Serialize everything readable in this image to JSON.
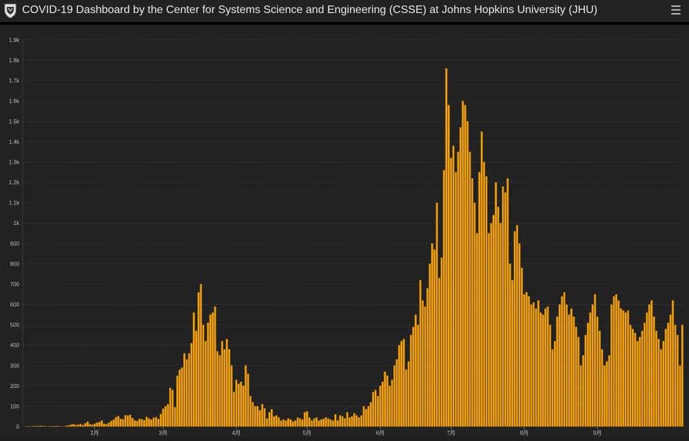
{
  "header": {
    "title": "COVID-19 Dashboard by the Center for Systems Science and Engineering (CSSE) at Johns Hopkins University (JHU)",
    "logo_icon": "jhu-shield-icon",
    "menu_icon": "hamburger-menu-icon"
  },
  "colors": {
    "background": "#222222",
    "bar": "#f5a30a",
    "bar_edge": "#8a5a00",
    "grid": "#3a3a3a",
    "tick_text": "#bdbdbd"
  },
  "chart_data": {
    "type": "bar",
    "title": "",
    "xlabel": "",
    "ylabel": "",
    "ylim": [
      0,
      1900
    ],
    "y_ticks": [
      {
        "value": 0,
        "label": "0"
      },
      {
        "value": 100,
        "label": "100"
      },
      {
        "value": 200,
        "label": "200"
      },
      {
        "value": 300,
        "label": "300"
      },
      {
        "value": 400,
        "label": "400"
      },
      {
        "value": 500,
        "label": "500"
      },
      {
        "value": 600,
        "label": "600"
      },
      {
        "value": 700,
        "label": "700"
      },
      {
        "value": 800,
        "label": "800"
      },
      {
        "value": 900,
        "label": "900"
      },
      {
        "value": 1000,
        "label": "1k"
      },
      {
        "value": 1100,
        "label": "1.1k"
      },
      {
        "value": 1200,
        "label": "1.2k"
      },
      {
        "value": 1300,
        "label": "1.3k"
      },
      {
        "value": 1400,
        "label": "1.4k"
      },
      {
        "value": 1500,
        "label": "1.5k"
      },
      {
        "value": 1600,
        "label": "1.6k"
      },
      {
        "value": 1700,
        "label": "1.7k"
      },
      {
        "value": 1800,
        "label": "1.8k"
      },
      {
        "value": 1900,
        "label": "1.9k"
      }
    ],
    "x_ticks": [
      {
        "index": 30,
        "label": "2月"
      },
      {
        "index": 59,
        "label": "3月"
      },
      {
        "index": 90,
        "label": "4月"
      },
      {
        "index": 120,
        "label": "5月"
      },
      {
        "index": 151,
        "label": "6月"
      },
      {
        "index": 181,
        "label": "7月"
      },
      {
        "index": 212,
        "label": "8月"
      },
      {
        "index": 243,
        "label": "9月"
      }
    ],
    "values": [
      0,
      1,
      2,
      1,
      2,
      3,
      2,
      4,
      3,
      2,
      1,
      2,
      3,
      2,
      3,
      2,
      1,
      2,
      4,
      6,
      10,
      12,
      8,
      10,
      12,
      8,
      16,
      24,
      12,
      10,
      14,
      20,
      22,
      30,
      14,
      12,
      20,
      28,
      34,
      46,
      52,
      38,
      36,
      56,
      54,
      58,
      42,
      30,
      28,
      38,
      36,
      32,
      48,
      40,
      34,
      44,
      46,
      38,
      62,
      88,
      100,
      110,
      190,
      180,
      95,
      250,
      280,
      290,
      360,
      330,
      360,
      410,
      560,
      470,
      660,
      700,
      500,
      420,
      510,
      550,
      560,
      590,
      370,
      350,
      420,
      380,
      430,
      380,
      300,
      170,
      230,
      210,
      220,
      200,
      300,
      260,
      150,
      120,
      100,
      100,
      80,
      110,
      90,
      40,
      70,
      85,
      50,
      55,
      45,
      30,
      35,
      30,
      40,
      35,
      25,
      30,
      45,
      40,
      35,
      70,
      75,
      45,
      30,
      40,
      45,
      30,
      35,
      38,
      45,
      40,
      35,
      30,
      60,
      30,
      55,
      50,
      40,
      70,
      45,
      50,
      65,
      55,
      45,
      55,
      100,
      85,
      100,
      120,
      170,
      180,
      150,
      200,
      220,
      270,
      250,
      200,
      230,
      300,
      330,
      400,
      420,
      430,
      280,
      320,
      450,
      490,
      550,
      500,
      720,
      620,
      590,
      680,
      800,
      900,
      870,
      1100,
      730,
      830,
      1260,
      1760,
      1580,
      1320,
      1380,
      1250,
      1350,
      1470,
      1600,
      1580,
      1500,
      1350,
      1220,
      1100,
      950,
      1250,
      1450,
      1300,
      1230,
      950,
      1000,
      1040,
      1200,
      1080,
      1000,
      1180,
      1150,
      1220,
      800,
      720,
      960,
      990,
      900,
      780,
      650,
      660,
      640,
      600,
      610,
      580,
      620,
      560,
      550,
      580,
      590,
      500,
      380,
      420,
      540,
      600,
      640,
      660,
      600,
      550,
      580,
      540,
      490,
      440,
      300,
      350,
      450,
      510,
      560,
      600,
      650,
      540,
      470,
      380,
      300,
      320,
      350,
      600,
      640,
      650,
      620,
      580,
      570,
      560,
      570,
      500,
      480,
      460,
      420,
      440,
      470,
      510,
      560,
      600,
      620,
      540,
      470,
      430,
      380,
      420,
      480,
      510,
      550,
      620,
      500,
      450,
      300,
      500
    ]
  }
}
